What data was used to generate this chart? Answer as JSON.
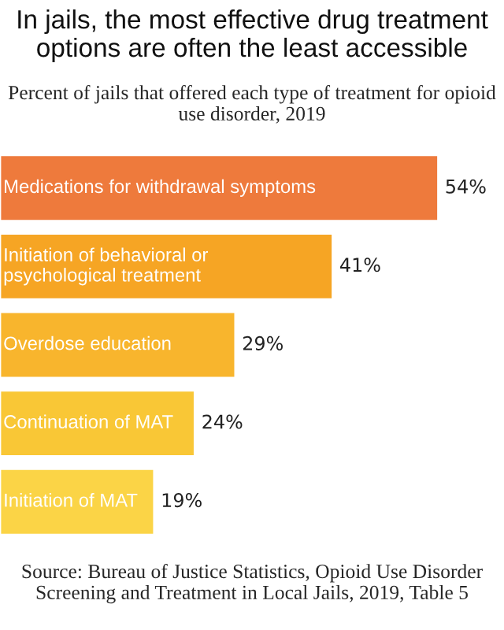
{
  "chart_data": {
    "type": "bar",
    "orientation": "horizontal",
    "title": "In jails, the most effective drug treatment options are often the least accessible",
    "subtitle": "Percent of jails that offered each type of treatment for opioid use disorder, 2019",
    "categories": [
      "Medications for withdrawal symptoms",
      "Initiation of behavioral or\npsychological treatment",
      "Overdose education",
      "Continuation of MAT",
      "Initiation of MAT"
    ],
    "values": [
      54,
      41,
      29,
      24,
      19
    ],
    "colors": [
      "#ee7a3c",
      "#f6a524",
      "#f8b52d",
      "#f9c736",
      "#fbd446"
    ],
    "value_labels": [
      "54%",
      "41%",
      "29%",
      "24%",
      "19%"
    ],
    "annotations": [
      "Source: Bureau of Justice Statistics, Opioid Use Disorder Screening and Treatment in Local Jails, 2019, Table 5"
    ]
  }
}
